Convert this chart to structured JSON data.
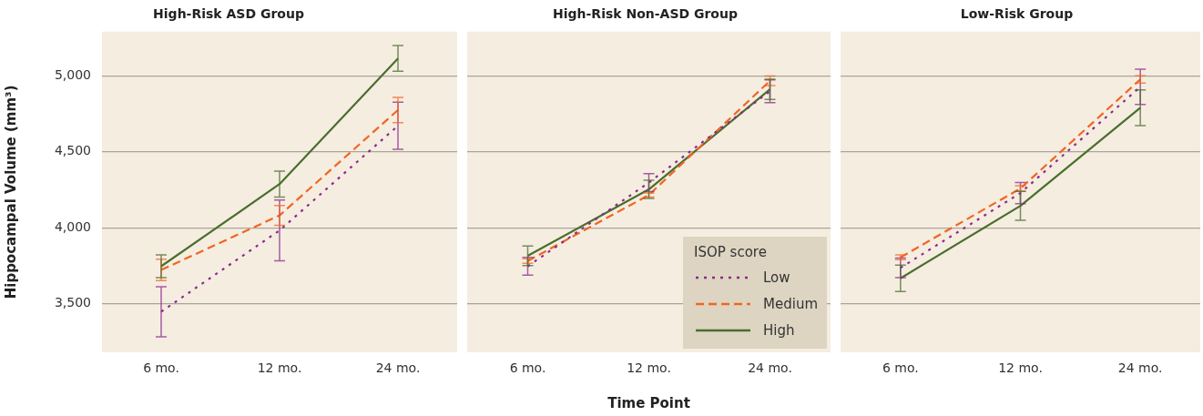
{
  "chart_data": [
    {
      "type": "line",
      "title": "High-Risk ASD Group",
      "ylabel": "Hippocampal Volume (mm³)",
      "categories": [
        "6 mo.",
        "12 mo.",
        "24 mo."
      ],
      "ylim": [
        3180,
        5290
      ],
      "yticks": [
        {
          "value": 3500,
          "label": "3,500"
        },
        {
          "value": 4000,
          "label": "4,000"
        },
        {
          "value": 4500,
          "label": "4,500"
        },
        {
          "value": 5000,
          "label": "5,000"
        }
      ],
      "grid": "y",
      "series": [
        {
          "color": "#8b2a8f",
          "line_style": "dotted",
          "values": [
            3447,
            3982,
            4671
          ],
          "errors": [
            165,
            200,
            155
          ]
        },
        {
          "color": "#f26522",
          "line_style": "dashed",
          "values": [
            3722,
            4081,
            4774
          ],
          "errors": [
            70,
            65,
            83
          ]
        },
        {
          "color": "#4a6e2e",
          "line_style": "solid",
          "values": [
            3746,
            4287,
            5114
          ],
          "errors": [
            75,
            85,
            85
          ]
        }
      ]
    },
    {
      "type": "line",
      "title": "High-Risk Non-ASD Group",
      "xlabel": "Time Point",
      "legend_title": "ISOP score",
      "legend": "bottom right",
      "tick_labels": "x",
      "categories": [
        "6 mo.",
        "12 mo.",
        "24 mo."
      ],
      "ylim": [
        3180,
        5290
      ],
      "yticks": [
        {
          "value": 3500,
          "label": null
        },
        {
          "value": 4000,
          "label": null
        },
        {
          "value": 4500,
          "label": null
        },
        {
          "value": 5000,
          "label": null
        }
      ],
      "grid": "y",
      "series": [
        {
          "name": "Low",
          "color": "#8b2a8f",
          "line_style": "dotted",
          "values": [
            3746,
            4297,
            4898
          ],
          "errors": [
            59,
            59,
            75
          ]
        },
        {
          "name": "Medium",
          "color": "#f26522",
          "line_style": "dashed",
          "values": [
            3781,
            4215,
            4967
          ],
          "errors": [
            15,
            14,
            31
          ]
        },
        {
          "name": "High",
          "color": "#4a6e2e",
          "line_style": "solid",
          "values": [
            3815,
            4252,
            4911
          ],
          "errors": [
            65,
            60,
            67
          ]
        }
      ]
    },
    {
      "type": "line",
      "title": "Low-Risk Group",
      "tick_labels": "x",
      "categories": [
        "6 mo.",
        "12 mo.",
        "24 mo."
      ],
      "ylim": [
        3180,
        5290
      ],
      "yticks": [
        {
          "value": 3500,
          "label": null
        },
        {
          "value": 4000,
          "label": null
        },
        {
          "value": 4500,
          "label": null
        },
        {
          "value": 5000,
          "label": null
        }
      ],
      "grid": "y",
      "series": [
        {
          "color": "#8b2a8f",
          "line_style": "dotted",
          "values": [
            3736,
            4228,
            4927
          ],
          "errors": [
            64,
            70,
            116
          ]
        },
        {
          "color": "#f26522",
          "line_style": "dashed",
          "values": [
            3805,
            4258,
            4976
          ],
          "errors": [
            16,
            18,
            24
          ]
        },
        {
          "color": "#4a6e2e",
          "line_style": "solid",
          "values": [
            3667,
            4144,
            4789
          ],
          "errors": [
            87,
            95,
            118
          ]
        }
      ]
    }
  ]
}
